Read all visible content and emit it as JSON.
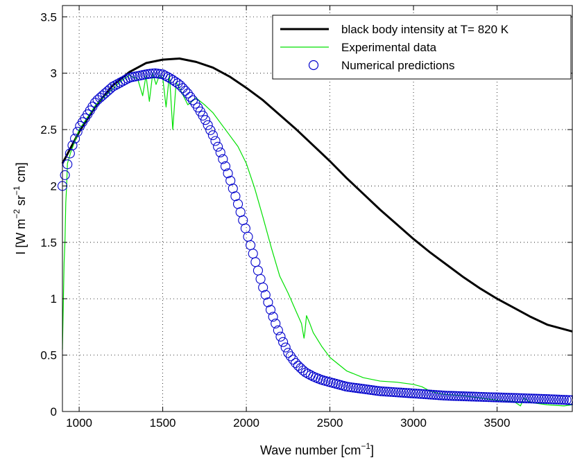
{
  "chart_data": {
    "type": "line",
    "xlabel_main": "Wave number [cm",
    "xlabel_sup": "−1",
    "xlabel_end": "]",
    "ylabel_parts": [
      "I [W  m",
      "−2",
      "  sr",
      "−1",
      "  cm]"
    ],
    "xlim": [
      900,
      3950
    ],
    "ylim": [
      0,
      3.6
    ],
    "x_ticks": [
      1000,
      1500,
      2000,
      2500,
      3000,
      3500
    ],
    "x_tick_labels": [
      "1000",
      "1500",
      "2000",
      "2500",
      "3000",
      "3500"
    ],
    "y_ticks": [
      0,
      0.5,
      1,
      1.5,
      2,
      2.5,
      3,
      3.5
    ],
    "y_tick_labels": [
      "0",
      "0.5",
      "1",
      "1.5",
      "2",
      "2.5",
      "3",
      "3.5"
    ],
    "grid": true,
    "legend_position": "top-right",
    "colors": {
      "blackbody": "#000000",
      "experimental": "#00e000",
      "numerical": "#0000cc"
    },
    "series": [
      {
        "name": "black body intensity at T= 820 K",
        "style": "thick-line",
        "x": [
          900,
          1000,
          1100,
          1200,
          1300,
          1400,
          1500,
          1600,
          1700,
          1800,
          1900,
          2000,
          2100,
          2200,
          2300,
          2400,
          2500,
          2600,
          2700,
          2800,
          2900,
          3000,
          3100,
          3200,
          3300,
          3400,
          3500,
          3600,
          3700,
          3800,
          3900,
          3950
        ],
        "y": [
          2.2,
          2.48,
          2.71,
          2.89,
          3.01,
          3.09,
          3.12,
          3.13,
          3.1,
          3.05,
          2.97,
          2.87,
          2.76,
          2.63,
          2.5,
          2.36,
          2.22,
          2.07,
          1.93,
          1.79,
          1.66,
          1.53,
          1.41,
          1.3,
          1.19,
          1.09,
          1.0,
          0.92,
          0.84,
          0.77,
          0.73,
          0.71
        ]
      },
      {
        "name": "Experimental data",
        "style": "thin-line",
        "x": [
          900,
          910,
          915,
          920,
          925,
          930,
          950,
          1000,
          1100,
          1200,
          1250,
          1300,
          1350,
          1380,
          1400,
          1420,
          1440,
          1460,
          1480,
          1500,
          1520,
          1540,
          1560,
          1580,
          1600,
          1650,
          1700,
          1750,
          1800,
          1850,
          1900,
          1950,
          2000,
          2050,
          2100,
          2150,
          2200,
          2250,
          2300,
          2330,
          2345,
          2350,
          2360,
          2380,
          2400,
          2450,
          2500,
          2600,
          2700,
          2800,
          2900,
          3000,
          3050,
          3100,
          3150,
          3200,
          3300,
          3400,
          3500,
          3600,
          3640,
          3660,
          3700,
          3800,
          3900,
          3950
        ],
        "y": [
          0.55,
          1.32,
          1.5,
          1.85,
          2.0,
          2.2,
          2.3,
          2.5,
          2.72,
          2.86,
          2.93,
          2.98,
          2.95,
          2.8,
          2.98,
          2.75,
          3.0,
          2.9,
          2.98,
          2.96,
          2.7,
          2.99,
          2.5,
          2.92,
          2.87,
          2.72,
          2.78,
          2.72,
          2.65,
          2.55,
          2.45,
          2.35,
          2.2,
          1.98,
          1.72,
          1.45,
          1.2,
          1.05,
          0.88,
          0.78,
          0.65,
          0.7,
          0.85,
          0.78,
          0.7,
          0.58,
          0.48,
          0.36,
          0.3,
          0.27,
          0.26,
          0.24,
          0.22,
          0.18,
          0.16,
          0.15,
          0.14,
          0.12,
          0.1,
          0.09,
          0.05,
          0.12,
          0.08,
          0.06,
          0.05,
          0.06
        ]
      },
      {
        "name": "Numerical predictions",
        "style": "open-circles",
        "x": [
          900,
          950,
          1000,
          1100,
          1200,
          1300,
          1400,
          1450,
          1500,
          1550,
          1600,
          1650,
          1700,
          1750,
          1800,
          1850,
          1900,
          1950,
          2000,
          2050,
          2100,
          2150,
          2200,
          2250,
          2300,
          2350,
          2400,
          2450,
          2500,
          2550,
          2600,
          2700,
          2800,
          2900,
          3000,
          3200,
          3400,
          3600,
          3800,
          3950
        ],
        "y": [
          2.0,
          2.32,
          2.52,
          2.75,
          2.88,
          2.96,
          2.99,
          3.0,
          2.99,
          2.95,
          2.9,
          2.82,
          2.72,
          2.6,
          2.45,
          2.28,
          2.07,
          1.84,
          1.6,
          1.35,
          1.1,
          0.88,
          0.68,
          0.52,
          0.42,
          0.35,
          0.31,
          0.28,
          0.26,
          0.24,
          0.22,
          0.2,
          0.18,
          0.17,
          0.16,
          0.14,
          0.13,
          0.12,
          0.11,
          0.1
        ]
      }
    ]
  }
}
